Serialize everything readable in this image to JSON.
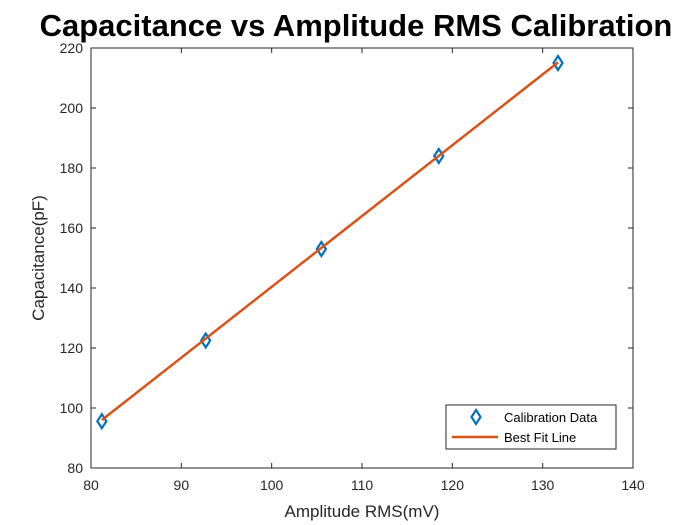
{
  "chart_data": {
    "type": "scatter",
    "title": "Capacitance vs Amplitude RMS Calibration",
    "xlabel": "Amplitude RMS(mV)",
    "ylabel": "Capacitance(pF)",
    "xlim": [
      80,
      140
    ],
    "ylim": [
      80,
      220
    ],
    "xticks": [
      80,
      90,
      100,
      110,
      120,
      130,
      140
    ],
    "yticks": [
      80,
      100,
      120,
      140,
      160,
      180,
      200,
      220
    ],
    "grid": false,
    "legend_position": "bottom-right",
    "series": [
      {
        "name": "Calibration Data",
        "kind": "markers",
        "marker": "diamond",
        "color": "#0072BD",
        "x": [
          81.2,
          92.7,
          105.5,
          118.5,
          131.7
        ],
        "y": [
          95.6,
          122.5,
          153.0,
          184.0,
          215.0
        ]
      },
      {
        "name": "Best Fit Line",
        "kind": "line",
        "color": "#D95319",
        "x": [
          81.2,
          131.7
        ],
        "y": [
          96.0,
          215.2
        ]
      }
    ]
  }
}
